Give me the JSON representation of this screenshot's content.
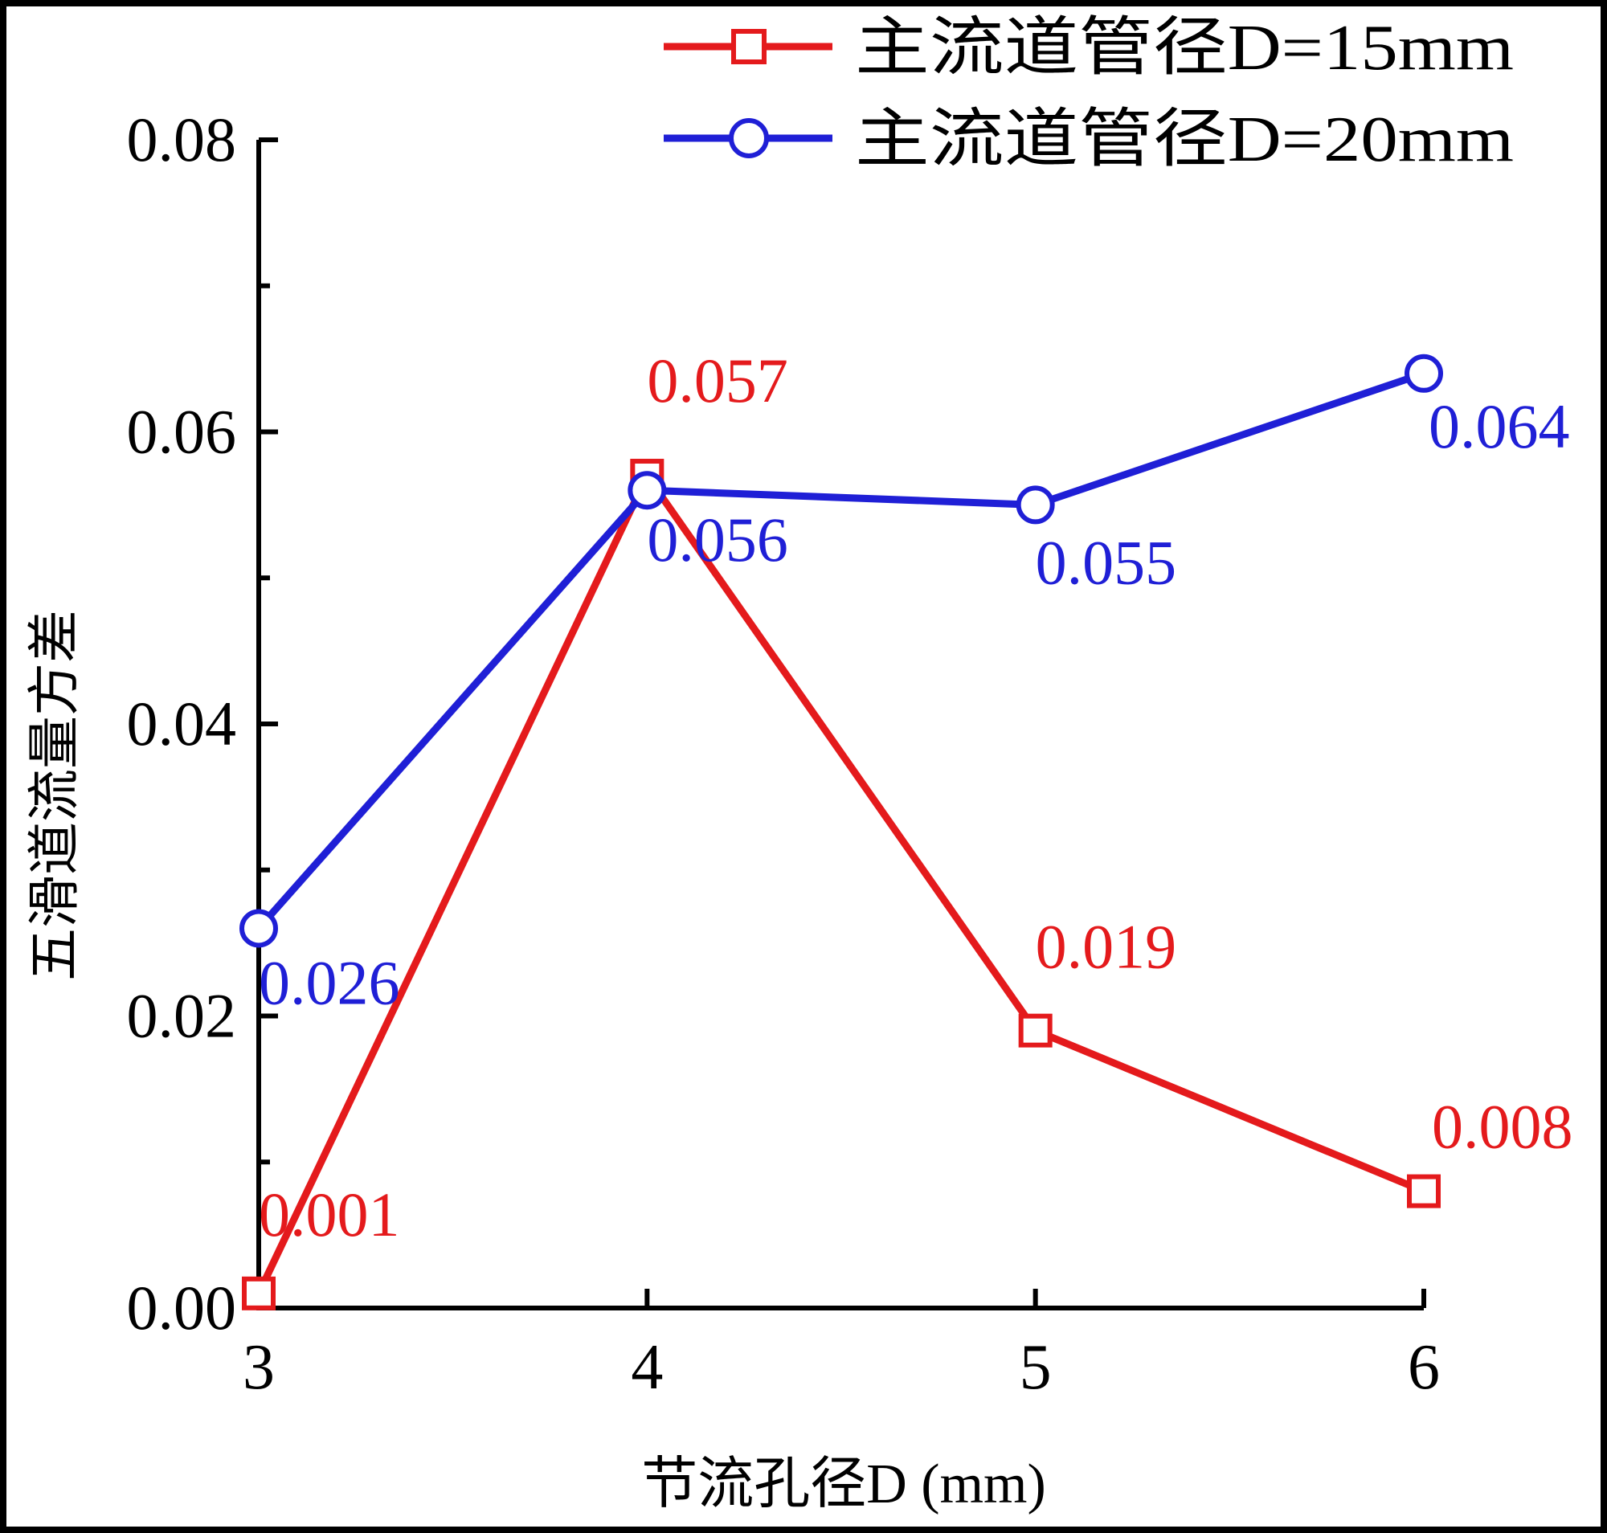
{
  "chart_data": {
    "type": "line",
    "title": "",
    "xlabel": "节流孔径D (mm)",
    "ylabel": "五滑道流量方差",
    "x": [
      3,
      4,
      5,
      6
    ],
    "xlim": [
      3,
      6
    ],
    "ylim": [
      0,
      0.08
    ],
    "x_ticks": [
      "3",
      "4",
      "5",
      "6"
    ],
    "y_ticks": [
      "0.00",
      "0.02",
      "0.04",
      "0.06",
      "0.08"
    ],
    "grid": false,
    "legend_position": "top-right",
    "series": [
      {
        "name": "主流道管径D=15mm",
        "marker": "square",
        "color": "#e41a1c",
        "values": [
          0.001,
          0.057,
          0.019,
          0.008
        ],
        "labels": [
          "0.001",
          "0.057",
          "0.019",
          "0.008"
        ]
      },
      {
        "name": "主流道管径D=20mm",
        "marker": "circle",
        "color": "#1f1fd6",
        "values": [
          0.026,
          0.056,
          0.055,
          0.064
        ],
        "labels": [
          "0.026",
          "0.056",
          "0.055",
          "0.064"
        ]
      }
    ]
  }
}
